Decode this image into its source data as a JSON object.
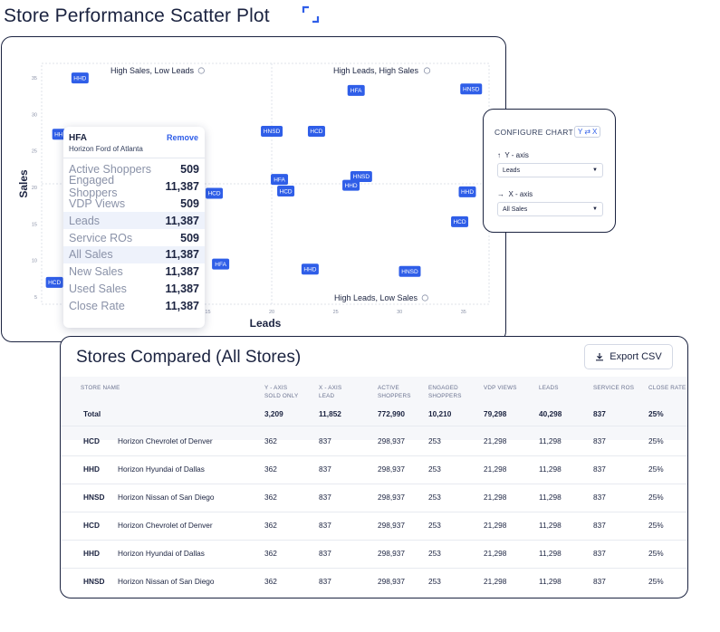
{
  "title": "Store Performance Scatter Plot",
  "chart_data": {
    "type": "scatter",
    "xlabel": "Leads",
    "ylabel": "Sales",
    "xlim": [
      2,
      37
    ],
    "ylim": [
      4,
      37
    ],
    "x_ticks": [
      5,
      10,
      15,
      20,
      25,
      30,
      35
    ],
    "y_ticks": [
      5,
      10,
      15,
      20,
      25,
      30,
      35
    ],
    "x_mid": 20,
    "y_mid": 20.5,
    "grid": true,
    "quadrants": [
      {
        "id": "tl",
        "label": "High Sales, Low Leads"
      },
      {
        "id": "tr",
        "label": "High Leads, High Sales"
      },
      {
        "id": "bl",
        "label": "Low Leads, Low Sales"
      },
      {
        "id": "br",
        "label": "High Leads, Low Sales"
      }
    ],
    "points": [
      {
        "label": "HHD",
        "x": 5,
        "y": 35
      },
      {
        "label": "HHD",
        "x": 3.5,
        "y": 27.3
      },
      {
        "label": "HCD",
        "x": 15.5,
        "y": 19.2
      },
      {
        "label": "HFA",
        "x": 16,
        "y": 9.5
      },
      {
        "label": "HCD",
        "x": 3,
        "y": 7
      },
      {
        "label": "HFA",
        "x": 26.6,
        "y": 33.3
      },
      {
        "label": "HNSD",
        "x": 35.6,
        "y": 33.5
      },
      {
        "label": "HNSD",
        "x": 20,
        "y": 27.7
      },
      {
        "label": "HCD",
        "x": 23.5,
        "y": 27.7
      },
      {
        "label": "HFA",
        "x": 20.6,
        "y": 21.1
      },
      {
        "label": "HCD",
        "x": 21.1,
        "y": 19.5
      },
      {
        "label": "HNSD",
        "x": 27,
        "y": 21.5
      },
      {
        "label": "HHD",
        "x": 26.2,
        "y": 20.3
      },
      {
        "label": "HHD",
        "x": 35.3,
        "y": 19.4
      },
      {
        "label": "HCD",
        "x": 34.7,
        "y": 15.3
      },
      {
        "label": "HHD",
        "x": 23,
        "y": 8.8
      },
      {
        "label": "HNSD",
        "x": 30.8,
        "y": 8.5
      }
    ]
  },
  "tooltip": {
    "code": "HFA",
    "name": "Horizon Ford of Atlanta",
    "remove_label": "Remove",
    "rows": [
      {
        "label": "Active Shoppers",
        "value": "509"
      },
      {
        "label": "Engaged Shoppers",
        "value": "11,387"
      },
      {
        "label": "VDP Views",
        "value": "509"
      },
      {
        "label": "Leads",
        "value": "11,387"
      },
      {
        "label": "Service ROs",
        "value": "509"
      },
      {
        "label": "All Sales",
        "value": "11,387"
      },
      {
        "label": "New Sales",
        "value": "11,387"
      },
      {
        "label": "Used Sales",
        "value": "11,387"
      },
      {
        "label": "Close Rate",
        "value": "11,387"
      }
    ]
  },
  "configure": {
    "title": "CONFIGURE CHART",
    "swap_y": "Y",
    "swap_x": "X",
    "y_axis_label": "Y - axis",
    "y_axis_value": "Leads",
    "x_axis_label": "X - axis",
    "x_axis_value": "All Sales"
  },
  "table": {
    "title": "Stores Compared (All Stores)",
    "export_label": "Export CSV",
    "headers": [
      {
        "line1": "STORE NAME",
        "line2": ""
      },
      {
        "line1": "Y - AXIS",
        "line2": "SOLD ONLY"
      },
      {
        "line1": "X - AXIS",
        "line2": "LEAD"
      },
      {
        "line1": "ACTIVE",
        "line2": "SHOPPERS"
      },
      {
        "line1": "ENGAGED",
        "line2": "SHOPPERS"
      },
      {
        "line1": "VDP VIEWS",
        "line2": ""
      },
      {
        "line1": "LEADS",
        "line2": ""
      },
      {
        "line1": "SERVICE ROS",
        "line2": ""
      },
      {
        "line1": "CLOSE RATE",
        "line2": ""
      }
    ],
    "total": {
      "label": "Total",
      "values": [
        "3,209",
        "11,852",
        "772,990",
        "10,210",
        "79,298",
        "40,298",
        "837",
        "25%"
      ]
    },
    "rows": [
      {
        "code": "HCD",
        "name": "Horizon Chevrolet of Denver",
        "values": [
          "362",
          "837",
          "298,937",
          "253",
          "21,298",
          "11,298",
          "837",
          "25%"
        ]
      },
      {
        "code": "HHD",
        "name": "Horizon Hyundai of Dallas",
        "values": [
          "362",
          "837",
          "298,937",
          "253",
          "21,298",
          "11,298",
          "837",
          "25%"
        ]
      },
      {
        "code": "HNSD",
        "name": "Horizon Nissan of San Diego",
        "values": [
          "362",
          "837",
          "298,937",
          "253",
          "21,298",
          "11,298",
          "837",
          "25%"
        ]
      },
      {
        "code": "HCD",
        "name": "Horizon Chevrolet of Denver",
        "values": [
          "362",
          "837",
          "298,937",
          "253",
          "21,298",
          "11,298",
          "837",
          "25%"
        ]
      },
      {
        "code": "HHD",
        "name": "Horizon Hyundai of Dallas",
        "values": [
          "362",
          "837",
          "298,937",
          "253",
          "21,298",
          "11,298",
          "837",
          "25%"
        ]
      },
      {
        "code": "HNSD",
        "name": "Horizon Nissan of San Diego",
        "values": [
          "362",
          "837",
          "298,937",
          "253",
          "21,298",
          "11,298",
          "837",
          "25%"
        ]
      }
    ]
  },
  "colors": {
    "accent": "#2f5ee8",
    "ink": "#1b2340",
    "muted": "#8a92a8"
  }
}
